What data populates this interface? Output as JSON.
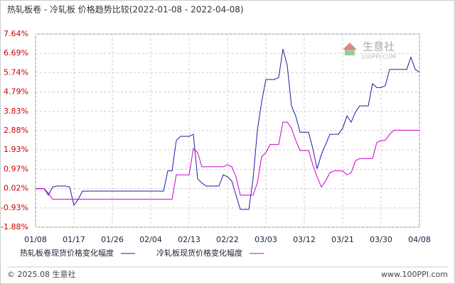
{
  "chart_data": {
    "type": "line",
    "title": "热轧板卷 - 冷轧板 价格趋势比较(2022-01-08 - 2022-04-08)",
    "categories": [
      "01/08",
      null,
      null,
      null,
      null,
      null,
      null,
      null,
      null,
      "01/17",
      null,
      null,
      null,
      null,
      null,
      null,
      null,
      null,
      "01/26",
      null,
      null,
      null,
      null,
      null,
      null,
      null,
      null,
      "02/04",
      null,
      null,
      null,
      null,
      null,
      null,
      null,
      null,
      "02/13",
      null,
      null,
      null,
      null,
      null,
      null,
      null,
      null,
      "02/22",
      null,
      null,
      null,
      null,
      null,
      null,
      null,
      null,
      "03/03",
      null,
      null,
      null,
      null,
      null,
      null,
      null,
      null,
      "03/12",
      null,
      null,
      null,
      null,
      null,
      null,
      null,
      null,
      "03/21",
      null,
      null,
      null,
      null,
      null,
      null,
      null,
      null,
      "03/30",
      null,
      null,
      null,
      null,
      null,
      null,
      null,
      null,
      "04/08"
    ],
    "series": [
      {
        "name": "热轧板卷现货价格变化幅度",
        "color": "#1c1ca8",
        "values": [
          0.02,
          0.02,
          0.02,
          -0.3,
          0.1,
          0.15,
          0.15,
          0.15,
          0.1,
          -0.8,
          -0.5,
          -0.1,
          -0.1,
          -0.1,
          -0.1,
          -0.1,
          -0.1,
          -0.1,
          -0.1,
          -0.1,
          -0.1,
          -0.1,
          -0.1,
          -0.1,
          -0.1,
          -0.1,
          -0.1,
          -0.1,
          -0.1,
          -0.1,
          -0.1,
          0.9,
          0.9,
          2.4,
          2.6,
          2.6,
          2.6,
          2.7,
          0.5,
          0.3,
          0.15,
          0.15,
          0.15,
          0.15,
          0.7,
          0.6,
          0.4,
          -0.3,
          -1.0,
          -1.0,
          -1.0,
          0.5,
          2.9,
          4.3,
          5.4,
          5.4,
          5.4,
          5.5,
          6.9,
          6.1,
          4.1,
          3.6,
          2.8,
          2.8,
          2.8,
          2.0,
          1.0,
          1.7,
          2.2,
          2.7,
          2.7,
          2.7,
          3.0,
          3.6,
          3.3,
          3.8,
          4.1,
          4.1,
          4.1,
          5.2,
          5.0,
          5.0,
          5.1,
          5.9,
          5.9,
          5.9,
          5.9,
          5.9,
          6.5,
          5.9,
          5.75
        ]
      },
      {
        "name": "冷轧板现货价格变化幅度",
        "color": "#cc00cc",
        "values": [
          0.02,
          0.02,
          0.02,
          -0.2,
          -0.5,
          -0.5,
          -0.5,
          -0.5,
          -0.5,
          -0.5,
          -0.5,
          -0.5,
          -0.5,
          -0.5,
          -0.5,
          -0.5,
          -0.5,
          -0.5,
          -0.5,
          -0.5,
          -0.5,
          -0.5,
          -0.5,
          -0.5,
          -0.5,
          -0.5,
          -0.5,
          -0.5,
          -0.5,
          -0.5,
          -0.5,
          -0.5,
          -0.5,
          0.7,
          0.7,
          0.7,
          0.7,
          2.0,
          1.8,
          1.1,
          1.1,
          1.1,
          1.1,
          1.1,
          1.1,
          1.2,
          1.1,
          0.6,
          -0.3,
          -0.3,
          -0.3,
          -0.3,
          0.3,
          1.6,
          1.8,
          2.2,
          2.2,
          2.2,
          3.3,
          3.3,
          3.0,
          2.4,
          1.9,
          1.9,
          1.9,
          1.2,
          0.6,
          0.1,
          0.4,
          0.8,
          0.9,
          0.9,
          0.9,
          0.7,
          0.8,
          1.4,
          1.5,
          1.5,
          1.5,
          1.5,
          2.3,
          2.4,
          2.4,
          2.7,
          2.9,
          2.9,
          2.9,
          2.9,
          2.9,
          2.9,
          2.9
        ]
      }
    ],
    "ylim": [
      -1.88,
      7.64
    ],
    "yticks": [
      {
        "value": -1.88,
        "label": "-1.88%"
      },
      {
        "value": -0.93,
        "label": "-0.93%"
      },
      {
        "value": 0.02,
        "label": "0.02%"
      },
      {
        "value": 0.97,
        "label": "0.97%"
      },
      {
        "value": 1.93,
        "label": "1.93%"
      },
      {
        "value": 2.88,
        "label": "2.88%"
      },
      {
        "value": 3.83,
        "label": "3.83%"
      },
      {
        "value": 4.79,
        "label": "4.79%"
      },
      {
        "value": 5.74,
        "label": "5.74%"
      },
      {
        "value": 6.69,
        "label": "6.69%"
      },
      {
        "value": 7.64,
        "label": "7.64%"
      }
    ],
    "grid": true,
    "legend": "bottom"
  },
  "watermark": {
    "name": "生意社",
    "site": "100PPI.COM"
  },
  "footer": {
    "copyright": "© 2025.08 生意社",
    "url": "www.100PPI.com"
  }
}
